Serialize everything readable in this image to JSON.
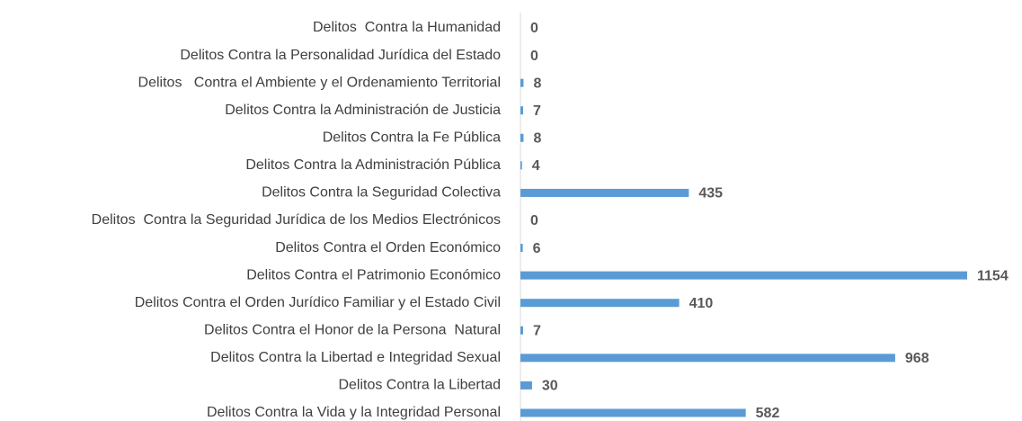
{
  "chart_data": {
    "type": "bar",
    "orientation": "horizontal",
    "categories": [
      "Delitos  Contra la Humanidad",
      "Delitos Contra la Personalidad Jurídica del Estado",
      "Delitos   Contra el Ambiente y el Ordenamiento Territorial",
      "Delitos Contra la Administración de Justicia",
      "Delitos Contra la Fe Pública",
      "Delitos Contra la Administración Pública",
      "Delitos Contra la Seguridad Colectiva",
      "Delitos  Contra la Seguridad Jurídica de los Medios Electrónicos",
      "Delitos Contra el Orden Económico",
      "Delitos Contra el Patrimonio Económico",
      "Delitos Contra el Orden Jurídico Familiar y el Estado Civil",
      "Delitos Contra el Honor de la Persona  Natural",
      "Delitos Contra la Libertad e Integridad Sexual",
      "Delitos Contra la Libertad",
      "Delitos Contra la Vida y la Integridad Personal"
    ],
    "values": [
      0,
      0,
      8,
      7,
      8,
      4,
      435,
      0,
      6,
      1154,
      410,
      7,
      968,
      30,
      582
    ],
    "color": "#5b9bd5"
  }
}
